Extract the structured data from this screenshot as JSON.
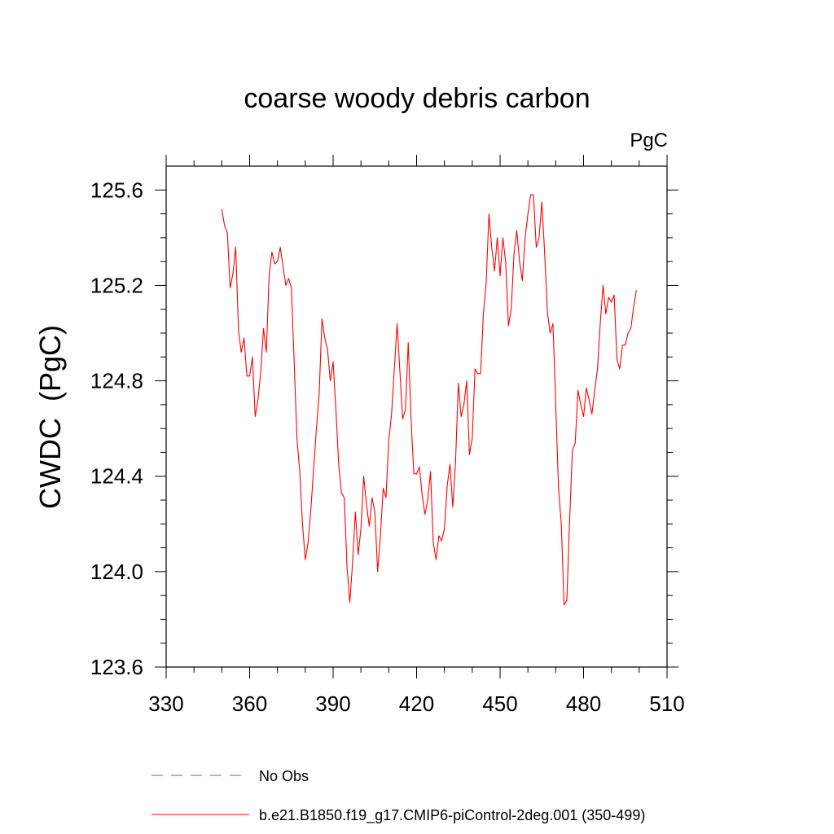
{
  "chart_data": {
    "type": "line",
    "title": "coarse woody debris carbon",
    "units": "PgC",
    "ylabel": "CWDC  (PgC)",
    "xlabel": "",
    "xlim": [
      330,
      510
    ],
    "ylim": [
      123.6,
      125.7
    ],
    "xticks": [
      330,
      360,
      390,
      420,
      450,
      480,
      510
    ],
    "yticks": [
      123.6,
      124.0,
      124.4,
      124.8,
      125.2,
      125.6
    ],
    "xtick_labels": [
      "330",
      "360",
      "390",
      "420",
      "450",
      "480",
      "510"
    ],
    "ytick_labels": [
      "123.6",
      "124.0",
      "124.4",
      "124.8",
      "125.2",
      "125.6"
    ],
    "grid": false,
    "legend": {
      "placement": "bottom",
      "entries": [
        {
          "label": "No Obs",
          "color": "#6a5acd",
          "style": "dashed"
        },
        {
          "label": "b.e21.B1850.f19_g17.CMIP6-piControl-2deg.001 (350-499)",
          "color": "#ff0000",
          "style": "solid"
        }
      ]
    },
    "series": [
      {
        "name": "b.e21.B1850.f19_g17.CMIP6-piControl-2deg.001 (350-499)",
        "color": "#ff0000",
        "x": [
          350,
          351,
          352,
          353,
          354,
          355,
          356,
          357,
          358,
          359,
          360,
          361,
          362,
          363,
          364,
          365,
          366,
          367,
          368,
          369,
          370,
          371,
          372,
          373,
          374,
          375,
          376,
          377,
          378,
          379,
          380,
          381,
          382,
          383,
          384,
          385,
          386,
          387,
          388,
          389,
          390,
          391,
          392,
          393,
          394,
          395,
          396,
          397,
          398,
          399,
          400,
          401,
          402,
          403,
          404,
          405,
          406,
          407,
          408,
          409,
          410,
          411,
          412,
          413,
          414,
          415,
          416,
          417,
          418,
          419,
          420,
          421,
          422,
          423,
          424,
          425,
          426,
          427,
          428,
          429,
          430,
          431,
          432,
          433,
          434,
          435,
          436,
          437,
          438,
          439,
          440,
          441,
          442,
          443,
          444,
          445,
          446,
          447,
          448,
          449,
          450,
          451,
          452,
          453,
          454,
          455,
          456,
          457,
          458,
          459,
          460,
          461,
          462,
          463,
          464,
          465,
          466,
          467,
          468,
          469,
          470,
          471,
          472,
          473,
          474,
          475,
          476,
          477,
          478,
          479,
          480,
          481,
          482,
          483,
          484,
          485,
          486,
          487,
          488,
          489,
          490,
          491,
          492,
          493,
          494,
          495,
          496,
          497,
          498,
          499
        ],
        "y": [
          125.52,
          125.45,
          125.42,
          125.19,
          125.25,
          125.36,
          125.01,
          124.92,
          124.98,
          124.82,
          124.82,
          124.9,
          124.65,
          124.72,
          124.84,
          125.02,
          124.92,
          125.24,
          125.34,
          125.29,
          125.3,
          125.36,
          125.28,
          125.2,
          125.23,
          125.19,
          124.88,
          124.56,
          124.42,
          124.2,
          124.05,
          124.12,
          124.26,
          124.43,
          124.6,
          124.75,
          125.06,
          124.98,
          124.93,
          124.8,
          124.88,
          124.68,
          124.45,
          124.33,
          124.31,
          124.02,
          123.87,
          124.04,
          124.25,
          124.07,
          124.18,
          124.4,
          124.28,
          124.19,
          124.31,
          124.25,
          124.0,
          124.15,
          124.35,
          124.31,
          124.55,
          124.66,
          124.85,
          125.04,
          124.84,
          124.64,
          124.68,
          124.96,
          124.64,
          124.41,
          124.41,
          124.44,
          124.32,
          124.24,
          124.3,
          124.42,
          124.12,
          124.05,
          124.15,
          124.13,
          124.18,
          124.36,
          124.45,
          124.27,
          124.46,
          124.79,
          124.65,
          124.7,
          124.8,
          124.49,
          124.56,
          124.85,
          124.83,
          124.83,
          125.08,
          125.21,
          125.5,
          125.36,
          125.26,
          125.4,
          125.24,
          125.4,
          125.3,
          125.03,
          125.1,
          125.33,
          125.43,
          125.3,
          125.22,
          125.4,
          125.5,
          125.58,
          125.58,
          125.36,
          125.4,
          125.55,
          125.34,
          125.09,
          125.0,
          125.04,
          124.7,
          124.35,
          124.2,
          123.86,
          123.88,
          124.22,
          124.51,
          124.54,
          124.76,
          124.7,
          124.65,
          124.77,
          124.72,
          124.66,
          124.76,
          124.85,
          125.04,
          125.2,
          125.08,
          125.15,
          125.13,
          125.16,
          124.89,
          124.85,
          124.95,
          124.95,
          125.0,
          125.02,
          125.11,
          125.18
        ]
      }
    ]
  }
}
